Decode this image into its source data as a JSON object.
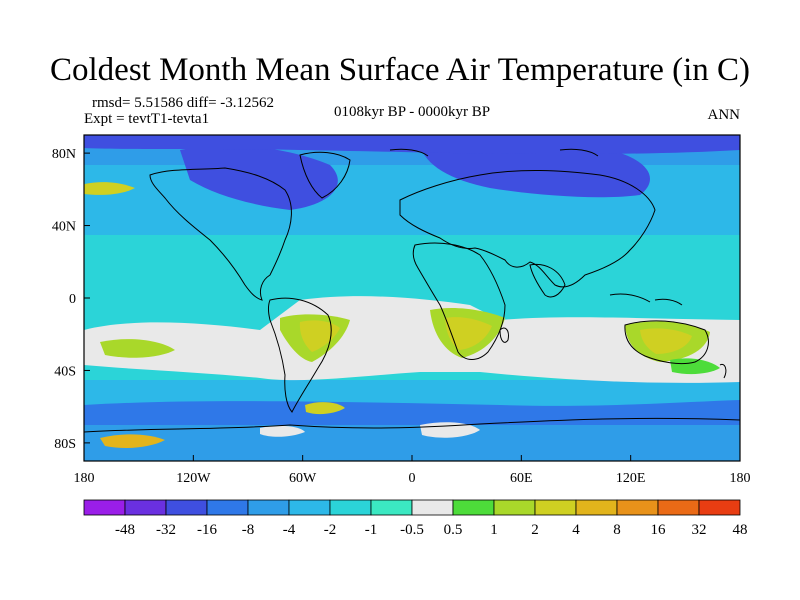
{
  "title": "Coldest Month Mean Surface Air Temperature (in C)",
  "stats_text": "rmsd= 5.51586 diff= -3.12562",
  "expt_text": "Expt = tevtT1-tevta1",
  "period_text": "0108kyr BP - 0000kyr BP",
  "season_text": "ANN",
  "map": {
    "lon_ticks": [
      {
        "lon": -180,
        "label": "180"
      },
      {
        "lon": -120,
        "label": "120W"
      },
      {
        "lon": -60,
        "label": "60W"
      },
      {
        "lon": 0,
        "label": "0"
      },
      {
        "lon": 60,
        "label": "60E"
      },
      {
        "lon": 120,
        "label": "120E"
      },
      {
        "lon": 180,
        "label": "180"
      }
    ],
    "lat_ticks": [
      {
        "lat": 80,
        "label": "80N"
      },
      {
        "lat": 40,
        "label": "40N"
      },
      {
        "lat": 0,
        "label": "0"
      },
      {
        "lat": -40,
        "label": "40S"
      },
      {
        "lat": -80,
        "label": "80S"
      }
    ],
    "lat_range": [
      -90,
      90
    ],
    "lon_range": [
      -180,
      180
    ]
  },
  "colorbar": {
    "labels": [
      "-48",
      "-32",
      "-16",
      "-8",
      "-4",
      "-2",
      "-1",
      "-0.5",
      "0.5",
      "1",
      "2",
      "4",
      "8",
      "16",
      "32",
      "48"
    ],
    "colors": [
      "#9a1ee8",
      "#6a30e0",
      "#3f4fe0",
      "#2f78e8",
      "#2f9de8",
      "#2db8e8",
      "#2bd4d8",
      "#3be8c2",
      "#e9e9e9",
      "#4ddc3a",
      "#a9d82a",
      "#cfd022",
      "#e2b41c",
      "#e8921a",
      "#ea6a16",
      "#e83d12"
    ]
  }
}
